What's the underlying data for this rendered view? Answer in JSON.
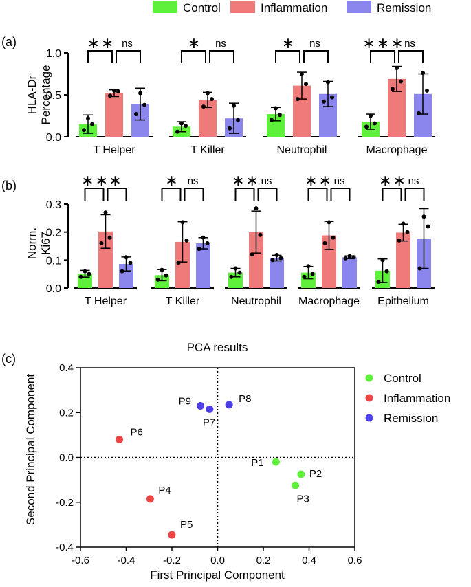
{
  "legend_top": [
    {
      "name": "Control",
      "color": "#5ef03a"
    },
    {
      "name": "Inflammation",
      "color": "#ee7a7a"
    },
    {
      "name": "Remission",
      "color": "#8b86ee"
    }
  ],
  "chart_data": [
    {
      "panel": "(a)",
      "type": "bar",
      "ylabel_lines": [
        "HLA-Dr",
        "Percentage"
      ],
      "ylim": [
        0,
        1.0
      ],
      "yticks": [
        "0.0",
        "0.5",
        "1.0"
      ],
      "categories": [
        "T Helper",
        "T Killer",
        "Neutrophil",
        "Macrophage"
      ],
      "series": [
        {
          "name": "Control",
          "values": [
            0.15,
            0.12,
            0.27,
            0.18
          ],
          "sd": [
            0.11,
            0.06,
            0.08,
            0.09
          ],
          "points": [
            [
              0.08,
              0.15,
              0.22
            ],
            [
              0.06,
              0.13,
              0.16
            ],
            [
              0.2,
              0.26,
              0.34
            ],
            [
              0.12,
              0.16,
              0.25
            ]
          ]
        },
        {
          "name": "Inflammation",
          "values": [
            0.52,
            0.44,
            0.61,
            0.69
          ],
          "sd": [
            0.04,
            0.09,
            0.16,
            0.15
          ],
          "points": [
            [
              0.49,
              0.54,
              0.55
            ],
            [
              0.36,
              0.45,
              0.52
            ],
            [
              0.45,
              0.63,
              0.75
            ],
            [
              0.57,
              0.66,
              0.82
            ]
          ]
        },
        {
          "name": "Remission",
          "values": [
            0.39,
            0.22,
            0.51,
            0.51
          ],
          "sd": [
            0.19,
            0.18,
            0.15,
            0.24
          ],
          "points": [
            [
              0.27,
              0.38,
              0.52
            ],
            [
              0.1,
              0.2,
              0.37
            ],
            [
              0.42,
              0.47,
              0.65
            ],
            [
              0.28,
              0.55,
              0.76
            ]
          ]
        }
      ],
      "significance": [
        [
          "**",
          "ns"
        ],
        [
          "*",
          "ns"
        ],
        [
          "*",
          "ns"
        ],
        [
          "***",
          "ns"
        ]
      ]
    },
    {
      "panel": "(b)",
      "type": "bar",
      "ylabel_lines": [
        "Norm.",
        "Ki67"
      ],
      "ylim": [
        0,
        0.3
      ],
      "yticks": [
        "0.0",
        "0.1",
        "0.2",
        "0.3"
      ],
      "categories": [
        "T Helper",
        "T Killer",
        "Neutrophil",
        "Macrophage",
        "Epithelium"
      ],
      "series": [
        {
          "name": "Control",
          "values": [
            0.051,
            0.046,
            0.055,
            0.055,
            0.062
          ],
          "sd": [
            0.012,
            0.02,
            0.015,
            0.022,
            0.042
          ],
          "points": [
            [
              0.04,
              0.05,
              0.06
            ],
            [
              0.03,
              0.045,
              0.065
            ],
            [
              0.04,
              0.055,
              0.07
            ],
            [
              0.04,
              0.05,
              0.078
            ],
            [
              0.022,
              0.06,
              0.1
            ]
          ]
        },
        {
          "name": "Inflammation",
          "values": [
            0.202,
            0.165,
            0.2,
            0.188,
            0.198
          ],
          "sd": [
            0.06,
            0.072,
            0.075,
            0.05,
            0.03
          ],
          "points": [
            [
              0.16,
              0.18,
              0.27
            ],
            [
              0.09,
              0.17,
              0.235
            ],
            [
              0.12,
              0.19,
              0.285
            ],
            [
              0.16,
              0.18,
              0.235
            ],
            [
              0.17,
              0.2,
              0.23
            ]
          ]
        },
        {
          "name": "Remission",
          "values": [
            0.086,
            0.16,
            0.107,
            0.11,
            0.177
          ],
          "sd": [
            0.025,
            0.02,
            0.01,
            0.005,
            0.107
          ],
          "points": [
            [
              0.06,
              0.09,
              0.11
            ],
            [
              0.14,
              0.16,
              0.18
            ],
            [
              0.1,
              0.107,
              0.118
            ],
            [
              0.106,
              0.11,
              0.114
            ],
            [
              0.07,
              0.22,
              0.255
            ]
          ]
        }
      ],
      "significance": [
        [
          "**",
          "*"
        ],
        [
          "*",
          "ns"
        ],
        [
          "**",
          "ns"
        ],
        [
          "**",
          "ns"
        ],
        [
          "**",
          "ns"
        ]
      ]
    },
    {
      "panel": "(c)",
      "type": "scatter",
      "title": "PCA results",
      "xlabel": "First Principal Component",
      "ylabel": "Second Principal Component",
      "xlim": [
        -0.6,
        0.6
      ],
      "ylim": [
        -0.4,
        0.4
      ],
      "xticks": [
        "-0.6",
        "-0.4",
        "-0.2",
        "0.0",
        "0.2",
        "0.4",
        "0.6"
      ],
      "yticks": [
        "-0.4",
        "-0.2",
        "0.0",
        "0.2",
        "0.4"
      ],
      "legend": [
        {
          "name": "Control",
          "color": "#5ef03a"
        },
        {
          "name": "Inflammation",
          "color": "#ee4444"
        },
        {
          "name": "Remission",
          "color": "#4d3fe6"
        }
      ],
      "points": [
        {
          "label": "P1",
          "group": "Control",
          "x": 0.255,
          "y": -0.02
        },
        {
          "label": "P2",
          "group": "Control",
          "x": 0.365,
          "y": -0.075
        },
        {
          "label": "P3",
          "group": "Control",
          "x": 0.34,
          "y": -0.125
        },
        {
          "label": "P4",
          "group": "Inflammation",
          "x": -0.295,
          "y": -0.185
        },
        {
          "label": "P5",
          "group": "Inflammation",
          "x": -0.2,
          "y": -0.345
        },
        {
          "label": "P6",
          "group": "Inflammation",
          "x": -0.43,
          "y": 0.08
        },
        {
          "label": "P7",
          "group": "Remission",
          "x": -0.035,
          "y": 0.215
        },
        {
          "label": "P8",
          "group": "Remission",
          "x": 0.05,
          "y": 0.235
        },
        {
          "label": "P9",
          "group": "Remission",
          "x": -0.075,
          "y": 0.23
        }
      ]
    }
  ]
}
